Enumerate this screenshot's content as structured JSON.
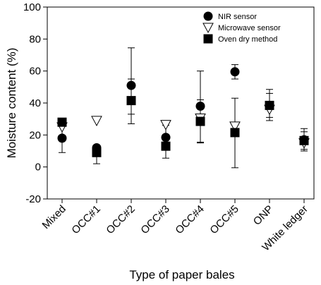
{
  "chart_data": {
    "type": "scatter",
    "xlabel": "Type of paper bales",
    "ylabel": "Moisture content (%)",
    "ylim": [
      -20,
      100
    ],
    "yticks": [
      -20,
      0,
      20,
      40,
      60,
      80,
      100
    ],
    "categories": [
      "Mixed",
      "OCC#1",
      "OCC#2",
      "OCC#3",
      "OCC#4",
      "OCC#5",
      "ONP",
      "White ledger"
    ],
    "grid": false,
    "legend_position": "top-right",
    "series": [
      {
        "name": "NIR sensor",
        "marker": "circle",
        "values": [
          18,
          12,
          51,
          18.5,
          38,
          59.5,
          38,
          17
        ],
        "err_low": [
          9,
          2,
          33,
          11,
          15,
          55,
          29,
          11
        ],
        "err_high": [
          27,
          13,
          74.5,
          26,
          60,
          64,
          46,
          24
        ]
      },
      {
        "name": "Microwave sensor",
        "marker": "triangle-down",
        "values": [
          25,
          29,
          null,
          26.5,
          30.5,
          25.5,
          36,
          15
        ],
        "err_low": [
          null,
          null,
          null,
          null,
          null,
          null,
          null,
          null
        ],
        "err_high": [
          null,
          null,
          null,
          null,
          null,
          null,
          null,
          null
        ]
      },
      {
        "name": "Oven dry method",
        "marker": "square",
        "values": [
          28,
          9,
          41.5,
          13,
          28.5,
          21.5,
          38.5,
          16.5
        ],
        "err_low": [
          null,
          8,
          27,
          5.5,
          15.5,
          -0.5,
          31,
          10
        ],
        "err_high": [
          null,
          10,
          55,
          20,
          42,
          43,
          48.5,
          22
        ]
      }
    ]
  }
}
